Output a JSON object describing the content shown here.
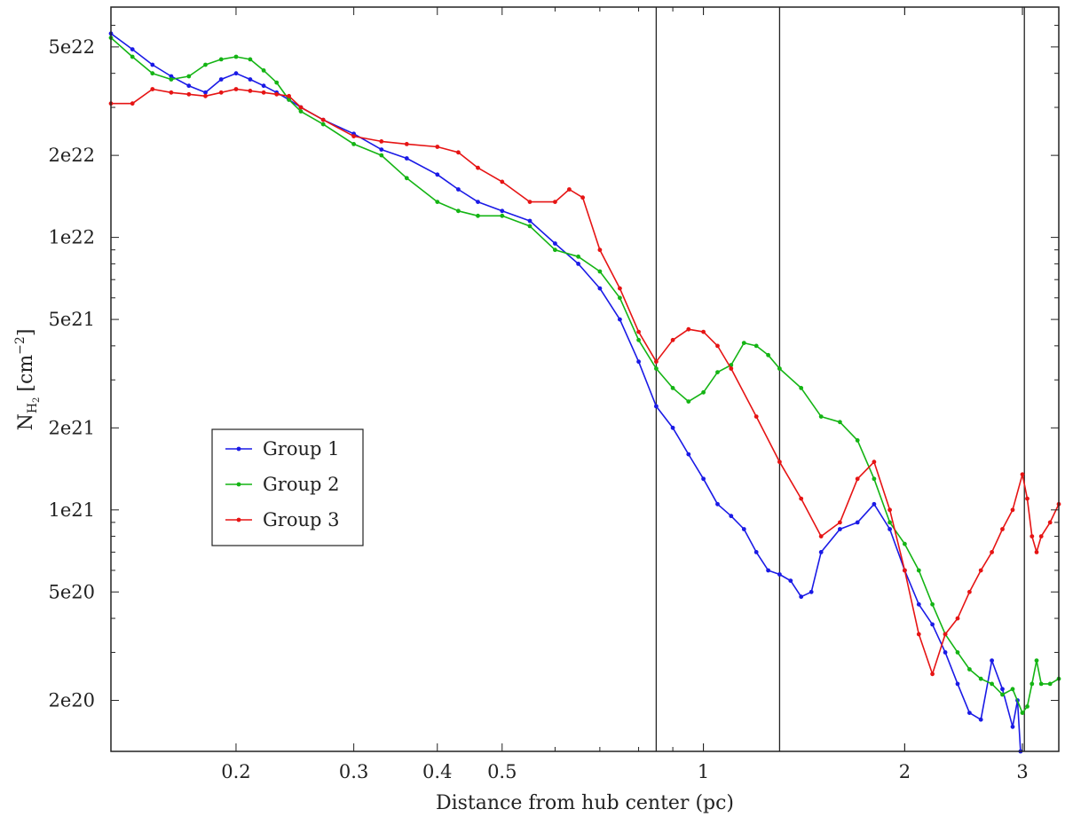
{
  "chart_data": {
    "type": "line",
    "xscale": "log",
    "yscale": "log",
    "xlabel": "Distance from hub center (pc)",
    "ylabel": "N",
    "ylabel_sub": "H",
    "ylabel_subsub": "2",
    "ylabel_units": "[cm",
    "ylabel_exp": "−2",
    "ylabel_close": "]",
    "xlim": [
      0.13,
      3.4
    ],
    "ylim": [
      1.3e+20,
      7e+22
    ],
    "xticks": [
      {
        "value": 0.2,
        "label": "0.2"
      },
      {
        "value": 0.3,
        "label": "0.3"
      },
      {
        "value": 0.4,
        "label": "0.4"
      },
      {
        "value": 0.5,
        "label": "0.5"
      },
      {
        "value": 1,
        "label": "1"
      },
      {
        "value": 2,
        "label": "2"
      },
      {
        "value": 3,
        "label": "3"
      }
    ],
    "yticks": [
      {
        "value": 2e+20,
        "label": "2e20"
      },
      {
        "value": 5e+20,
        "label": "5e20"
      },
      {
        "value": 1e+21,
        "label": "1e21"
      },
      {
        "value": 2e+21,
        "label": "2e21"
      },
      {
        "value": 5e+21,
        "label": "5e21"
      },
      {
        "value": 1e+22,
        "label": "1e22"
      },
      {
        "value": 2e+22,
        "label": "2e22"
      },
      {
        "value": 5e+22,
        "label": "5e22"
      }
    ],
    "vlines": [
      0.85,
      1.3,
      3.02
    ],
    "legend_position": "center-left",
    "series": [
      {
        "name": "Group 1",
        "color": "#1a1ae6",
        "points": [
          [
            0.13,
            5.6e+22
          ],
          [
            0.14,
            4.9e+22
          ],
          [
            0.15,
            4.3e+22
          ],
          [
            0.16,
            3.9e+22
          ],
          [
            0.17,
            3.6e+22
          ],
          [
            0.18,
            3.4e+22
          ],
          [
            0.19,
            3.8e+22
          ],
          [
            0.2,
            4e+22
          ],
          [
            0.21,
            3.8e+22
          ],
          [
            0.22,
            3.6e+22
          ],
          [
            0.23,
            3.4e+22
          ],
          [
            0.24,
            3.2e+22
          ],
          [
            0.25,
            3e+22
          ],
          [
            0.27,
            2.7e+22
          ],
          [
            0.3,
            2.4e+22
          ],
          [
            0.33,
            2.1e+22
          ],
          [
            0.36,
            1.95e+22
          ],
          [
            0.4,
            1.7e+22
          ],
          [
            0.43,
            1.5e+22
          ],
          [
            0.46,
            1.35e+22
          ],
          [
            0.5,
            1.25e+22
          ],
          [
            0.55,
            1.15e+22
          ],
          [
            0.6,
            9.5e+21
          ],
          [
            0.65,
            8e+21
          ],
          [
            0.7,
            6.5e+21
          ],
          [
            0.75,
            5e+21
          ],
          [
            0.8,
            3.5e+21
          ],
          [
            0.85,
            2.4e+21
          ],
          [
            0.9,
            2e+21
          ],
          [
            0.95,
            1.6e+21
          ],
          [
            1.0,
            1.3e+21
          ],
          [
            1.05,
            1.05e+21
          ],
          [
            1.1,
            9.5e+20
          ],
          [
            1.15,
            8.5e+20
          ],
          [
            1.2,
            7e+20
          ],
          [
            1.25,
            6e+20
          ],
          [
            1.3,
            5.8e+20
          ],
          [
            1.35,
            5.5e+20
          ],
          [
            1.4,
            4.8e+20
          ],
          [
            1.45,
            5e+20
          ],
          [
            1.5,
            7e+20
          ],
          [
            1.6,
            8.5e+20
          ],
          [
            1.7,
            9e+20
          ],
          [
            1.8,
            1.05e+21
          ],
          [
            1.9,
            8.5e+20
          ],
          [
            2.0,
            6e+20
          ],
          [
            2.1,
            4.5e+20
          ],
          [
            2.2,
            3.8e+20
          ],
          [
            2.3,
            3e+20
          ],
          [
            2.4,
            2.3e+20
          ],
          [
            2.5,
            1.8e+20
          ],
          [
            2.6,
            1.7e+20
          ],
          [
            2.7,
            2.8e+20
          ],
          [
            2.8,
            2.2e+20
          ],
          [
            2.9,
            1.6e+20
          ],
          [
            2.95,
            2e+20
          ],
          [
            2.98,
            1.3e+20
          ]
        ]
      },
      {
        "name": "Group 2",
        "color": "#14b414",
        "points": [
          [
            0.13,
            5.4e+22
          ],
          [
            0.14,
            4.6e+22
          ],
          [
            0.15,
            4e+22
          ],
          [
            0.16,
            3.8e+22
          ],
          [
            0.17,
            3.9e+22
          ],
          [
            0.18,
            4.3e+22
          ],
          [
            0.19,
            4.5e+22
          ],
          [
            0.2,
            4.6e+22
          ],
          [
            0.21,
            4.5e+22
          ],
          [
            0.22,
            4.1e+22
          ],
          [
            0.23,
            3.7e+22
          ],
          [
            0.24,
            3.2e+22
          ],
          [
            0.25,
            2.9e+22
          ],
          [
            0.27,
            2.6e+22
          ],
          [
            0.3,
            2.2e+22
          ],
          [
            0.33,
            2e+22
          ],
          [
            0.36,
            1.65e+22
          ],
          [
            0.4,
            1.35e+22
          ],
          [
            0.43,
            1.25e+22
          ],
          [
            0.46,
            1.2e+22
          ],
          [
            0.5,
            1.2e+22
          ],
          [
            0.55,
            1.1e+22
          ],
          [
            0.6,
            9e+21
          ],
          [
            0.65,
            8.5e+21
          ],
          [
            0.7,
            7.5e+21
          ],
          [
            0.75,
            6e+21
          ],
          [
            0.8,
            4.2e+21
          ],
          [
            0.85,
            3.3e+21
          ],
          [
            0.9,
            2.8e+21
          ],
          [
            0.95,
            2.5e+21
          ],
          [
            1.0,
            2.7e+21
          ],
          [
            1.05,
            3.2e+21
          ],
          [
            1.1,
            3.4e+21
          ],
          [
            1.15,
            4.1e+21
          ],
          [
            1.2,
            4e+21
          ],
          [
            1.25,
            3.7e+21
          ],
          [
            1.3,
            3.3e+21
          ],
          [
            1.4,
            2.8e+21
          ],
          [
            1.5,
            2.2e+21
          ],
          [
            1.6,
            2.1e+21
          ],
          [
            1.7,
            1.8e+21
          ],
          [
            1.8,
            1.3e+21
          ],
          [
            1.9,
            9e+20
          ],
          [
            2.0,
            7.5e+20
          ],
          [
            2.1,
            6e+20
          ],
          [
            2.2,
            4.5e+20
          ],
          [
            2.3,
            3.5e+20
          ],
          [
            2.4,
            3e+20
          ],
          [
            2.5,
            2.6e+20
          ],
          [
            2.6,
            2.4e+20
          ],
          [
            2.7,
            2.3e+20
          ],
          [
            2.8,
            2.1e+20
          ],
          [
            2.9,
            2.2e+20
          ],
          [
            3.0,
            1.8e+20
          ],
          [
            3.05,
            1.9e+20
          ],
          [
            3.1,
            2.3e+20
          ],
          [
            3.15,
            2.8e+20
          ],
          [
            3.2,
            2.3e+20
          ],
          [
            3.3,
            2.3e+20
          ],
          [
            3.4,
            2.4e+20
          ]
        ]
      },
      {
        "name": "Group 3",
        "color": "#e61414",
        "points": [
          [
            0.13,
            3.1e+22
          ],
          [
            0.14,
            3.1e+22
          ],
          [
            0.15,
            3.5e+22
          ],
          [
            0.16,
            3.4e+22
          ],
          [
            0.17,
            3.35e+22
          ],
          [
            0.18,
            3.3e+22
          ],
          [
            0.19,
            3.4e+22
          ],
          [
            0.2,
            3.5e+22
          ],
          [
            0.21,
            3.45e+22
          ],
          [
            0.22,
            3.4e+22
          ],
          [
            0.23,
            3.35e+22
          ],
          [
            0.24,
            3.3e+22
          ],
          [
            0.25,
            3e+22
          ],
          [
            0.27,
            2.7e+22
          ],
          [
            0.3,
            2.35e+22
          ],
          [
            0.33,
            2.25e+22
          ],
          [
            0.36,
            2.2e+22
          ],
          [
            0.4,
            2.15e+22
          ],
          [
            0.43,
            2.05e+22
          ],
          [
            0.46,
            1.8e+22
          ],
          [
            0.5,
            1.6e+22
          ],
          [
            0.55,
            1.35e+22
          ],
          [
            0.6,
            1.35e+22
          ],
          [
            0.63,
            1.5e+22
          ],
          [
            0.66,
            1.4e+22
          ],
          [
            0.7,
            9e+21
          ],
          [
            0.75,
            6.5e+21
          ],
          [
            0.8,
            4.5e+21
          ],
          [
            0.85,
            3.5e+21
          ],
          [
            0.9,
            4.2e+21
          ],
          [
            0.95,
            4.6e+21
          ],
          [
            1.0,
            4.5e+21
          ],
          [
            1.05,
            4e+21
          ],
          [
            1.1,
            3.3e+21
          ],
          [
            1.2,
            2.2e+21
          ],
          [
            1.3,
            1.5e+21
          ],
          [
            1.4,
            1.1e+21
          ],
          [
            1.5,
            8e+20
          ],
          [
            1.6,
            9e+20
          ],
          [
            1.7,
            1.3e+21
          ],
          [
            1.8,
            1.5e+21
          ],
          [
            1.9,
            1e+21
          ],
          [
            2.0,
            6e+20
          ],
          [
            2.1,
            3.5e+20
          ],
          [
            2.2,
            2.5e+20
          ],
          [
            2.3,
            3.5e+20
          ],
          [
            2.4,
            4e+20
          ],
          [
            2.5,
            5e+20
          ],
          [
            2.6,
            6e+20
          ],
          [
            2.7,
            7e+20
          ],
          [
            2.8,
            8.5e+20
          ],
          [
            2.9,
            1e+21
          ],
          [
            3.0,
            1.35e+21
          ],
          [
            3.05,
            1.1e+21
          ],
          [
            3.1,
            8e+20
          ],
          [
            3.15,
            7e+20
          ],
          [
            3.2,
            8e+20
          ],
          [
            3.3,
            9e+20
          ],
          [
            3.4,
            1.05e+21
          ]
        ]
      }
    ]
  }
}
